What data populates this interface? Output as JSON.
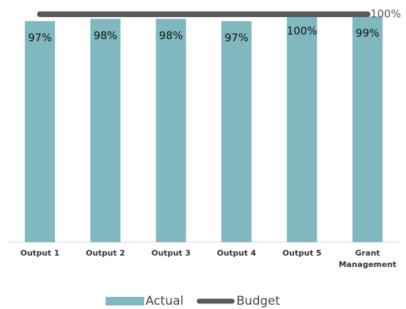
{
  "chart_data": {
    "type": "bar",
    "categories": [
      "Output 1",
      "Output 2",
      "Output 3",
      "Output 4",
      "Output 5",
      "Grant Management"
    ],
    "series": [
      {
        "name": "Actual",
        "type": "bar",
        "color": "#7fb8bf",
        "values": [
          97,
          98,
          98,
          97,
          100,
          99
        ],
        "value_labels": [
          "97%",
          "98%",
          "98%",
          "97%",
          "100%",
          "99%"
        ]
      },
      {
        "name": "Budget",
        "type": "line",
        "color": "#595959",
        "values": [
          100,
          100,
          100,
          100,
          100,
          100
        ],
        "value_labels": [
          null,
          null,
          null,
          null,
          null,
          "100%"
        ]
      }
    ],
    "ylim": [
      0,
      100
    ],
    "legend": "bottom"
  }
}
